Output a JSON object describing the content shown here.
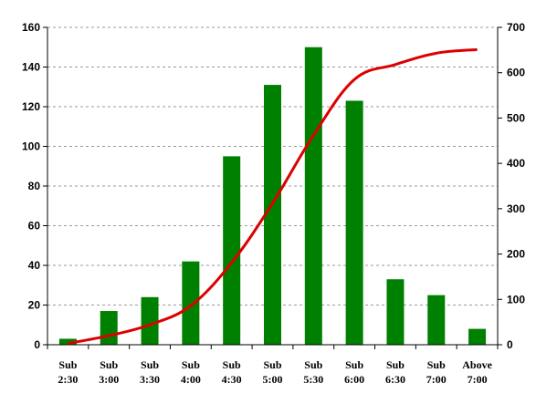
{
  "chart_data": {
    "type": "bar",
    "title": "",
    "xlabel": "",
    "ylabel": "",
    "y2label": "",
    "categories": [
      [
        "Sub",
        "2:30"
      ],
      [
        "Sub",
        "3:00"
      ],
      [
        "Sub",
        "3:30"
      ],
      [
        "Sub",
        "4:00"
      ],
      [
        "Sub",
        "4:30"
      ],
      [
        "Sub",
        "5:00"
      ],
      [
        "Sub",
        "5:30"
      ],
      [
        "Sub",
        "6:00"
      ],
      [
        "Sub",
        "6:30"
      ],
      [
        "Sub",
        "7:00"
      ],
      [
        "Above",
        "7:00"
      ]
    ],
    "series": [
      {
        "type": "bar",
        "axis": "left",
        "color": "#008000",
        "values": [
          3,
          17,
          24,
          42,
          95,
          131,
          150,
          123,
          33,
          25,
          8
        ]
      },
      {
        "type": "line",
        "axis": "right",
        "color": "#dd0000",
        "values": [
          3,
          20,
          44,
          86,
          181,
          312,
          462,
          585,
          618,
          643,
          651
        ]
      }
    ],
    "ylim": [
      0,
      160
    ],
    "yticks": [
      0,
      20,
      40,
      60,
      80,
      100,
      120,
      140,
      160
    ],
    "y2lim": [
      0,
      700
    ],
    "y2ticks": [
      0,
      100,
      200,
      300,
      400,
      500,
      600,
      700
    ],
    "grid": true,
    "grid_style": "dashed",
    "legend": "none"
  }
}
